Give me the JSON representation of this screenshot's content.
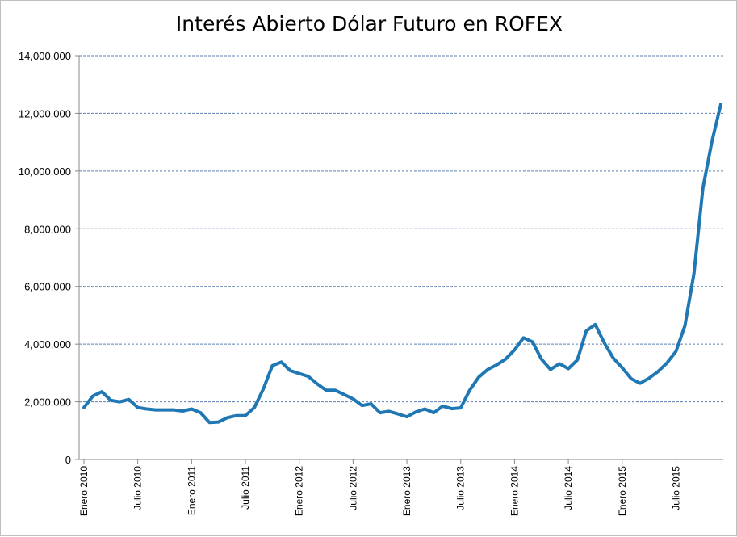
{
  "chart_data": {
    "type": "line",
    "title": "Interés Abierto Dólar Futuro en ROFEX",
    "xlabel": "",
    "ylabel": "",
    "ylim": [
      0,
      14000000
    ],
    "yticks": [
      0,
      2000000,
      4000000,
      6000000,
      8000000,
      10000000,
      12000000,
      14000000
    ],
    "ytick_labels": [
      "0",
      "2,000,000",
      "4,000,000",
      "6,000,000",
      "8,000,000",
      "10,000,000",
      "12,000,000",
      "14,000,000"
    ],
    "x_tick_labels": [
      {
        "index": 0,
        "label": "Enero 2010"
      },
      {
        "index": 6,
        "label": "Julio 2010"
      },
      {
        "index": 12,
        "label": "Enero 2011"
      },
      {
        "index": 18,
        "label": "Julio 2011"
      },
      {
        "index": 24,
        "label": "Enero 2012"
      },
      {
        "index": 30,
        "label": "Julio 2012"
      },
      {
        "index": 36,
        "label": "Enero 2013"
      },
      {
        "index": 42,
        "label": "Julio 2013"
      },
      {
        "index": 48,
        "label": "Enero 2014"
      },
      {
        "index": 54,
        "label": "Julio 2014"
      },
      {
        "index": 60,
        "label": "Enero 2015"
      },
      {
        "index": 66,
        "label": "Julio 2015"
      }
    ],
    "grid": true,
    "color": "#1f77b4",
    "series": [
      {
        "values": [
          1800000,
          2200000,
          2350000,
          2050000,
          2000000,
          2080000,
          1800000,
          1750000,
          1720000,
          1720000,
          1720000,
          1680000,
          1750000,
          1620000,
          1280000,
          1300000,
          1450000,
          1520000,
          1520000,
          1800000,
          2450000,
          3250000,
          3380000,
          3080000,
          2980000,
          2880000,
          2620000,
          2400000,
          2400000,
          2250000,
          2100000,
          1870000,
          1930000,
          1620000,
          1670000,
          1580000,
          1480000,
          1650000,
          1750000,
          1620000,
          1850000,
          1760000,
          1790000,
          2400000,
          2850000,
          3120000,
          3280000,
          3480000,
          3800000,
          4220000,
          4080000,
          3480000,
          3120000,
          3320000,
          3150000,
          3450000,
          4460000,
          4680000,
          4050000,
          3520000,
          3180000,
          2800000,
          2640000,
          2820000,
          3050000,
          3350000,
          3750000,
          4640000,
          6450000,
          9420000,
          11020000,
          12320000
        ]
      }
    ]
  }
}
